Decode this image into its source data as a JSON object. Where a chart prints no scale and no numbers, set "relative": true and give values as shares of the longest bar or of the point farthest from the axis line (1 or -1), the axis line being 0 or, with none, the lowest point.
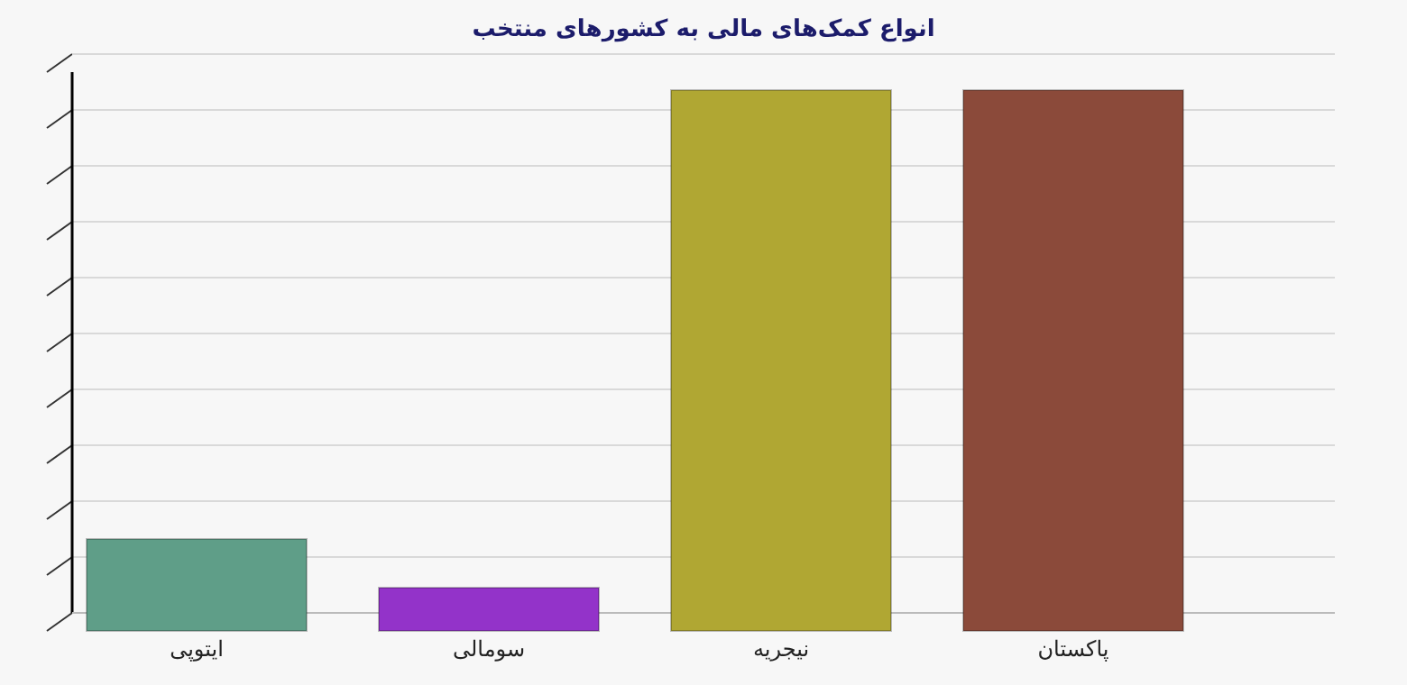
{
  "chart_data": {
    "type": "bar",
    "title": "انواع کمک‌های مالی به کشورهای منتخب",
    "categories": [
      "ایتوپی",
      "سومالی",
      "نیجریه",
      "پاکستان"
    ],
    "values": [
      0.17,
      0.08,
      1,
      1
    ],
    "colors": [
      "#5f9e88",
      "#9333c9",
      "#b0a733",
      "#8b4a3a"
    ],
    "relative": true,
    "grid": "y"
  }
}
